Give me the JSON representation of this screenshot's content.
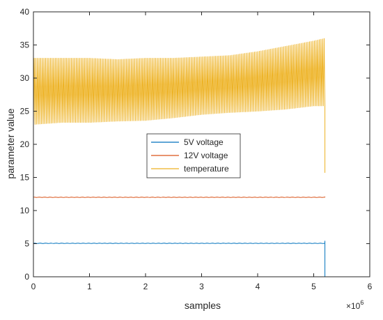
{
  "chart_data": {
    "type": "line",
    "xlabel": "samples",
    "ylabel": "parameter value",
    "x_multiplier_label": "×10^6",
    "x_multiplier_base": "×10",
    "x_multiplier_exp": "6",
    "xlim": [
      0,
      6
    ],
    "ylim": [
      0,
      40
    ],
    "x_ticks": [
      0,
      1,
      2,
      3,
      4,
      5,
      6
    ],
    "y_ticks": [
      0,
      5,
      10,
      15,
      20,
      25,
      30,
      35,
      40
    ],
    "x_unit_multiplier": 1000000,
    "grid": false,
    "legend": {
      "placement": "center",
      "entries": [
        "5V voltage",
        "12V voltage",
        "temperature"
      ]
    },
    "series": [
      {
        "name": "5V voltage",
        "color": "#0072BD",
        "style": "near-constant",
        "x_range": [
          0,
          5.2
        ],
        "level": 5.05,
        "end_spike_to": 5.4,
        "end_drop_to": 0
      },
      {
        "name": "12V voltage",
        "color": "#D95319",
        "style": "near-constant",
        "x_range": [
          0,
          5.2
        ],
        "level": 12.0,
        "end_spike_to": 12.1
      },
      {
        "name": "temperature",
        "color": "#EDB120",
        "style": "oscillating",
        "x_range": [
          0,
          5.2
        ],
        "oscillation_cycles": 180,
        "envelope": {
          "x": [
            0,
            0.5,
            1.0,
            1.5,
            2.0,
            2.5,
            3.0,
            3.5,
            4.0,
            4.5,
            5.0,
            5.2
          ],
          "upper": [
            33.0,
            33.0,
            33.0,
            32.8,
            33.0,
            33.0,
            33.2,
            33.4,
            34.0,
            34.8,
            35.6,
            36.0
          ],
          "lower": [
            23.0,
            23.3,
            23.3,
            23.5,
            23.6,
            24.0,
            24.5,
            24.8,
            25.0,
            25.3,
            25.8,
            25.8
          ]
        },
        "end_drop_to": 15.7
      }
    ]
  }
}
